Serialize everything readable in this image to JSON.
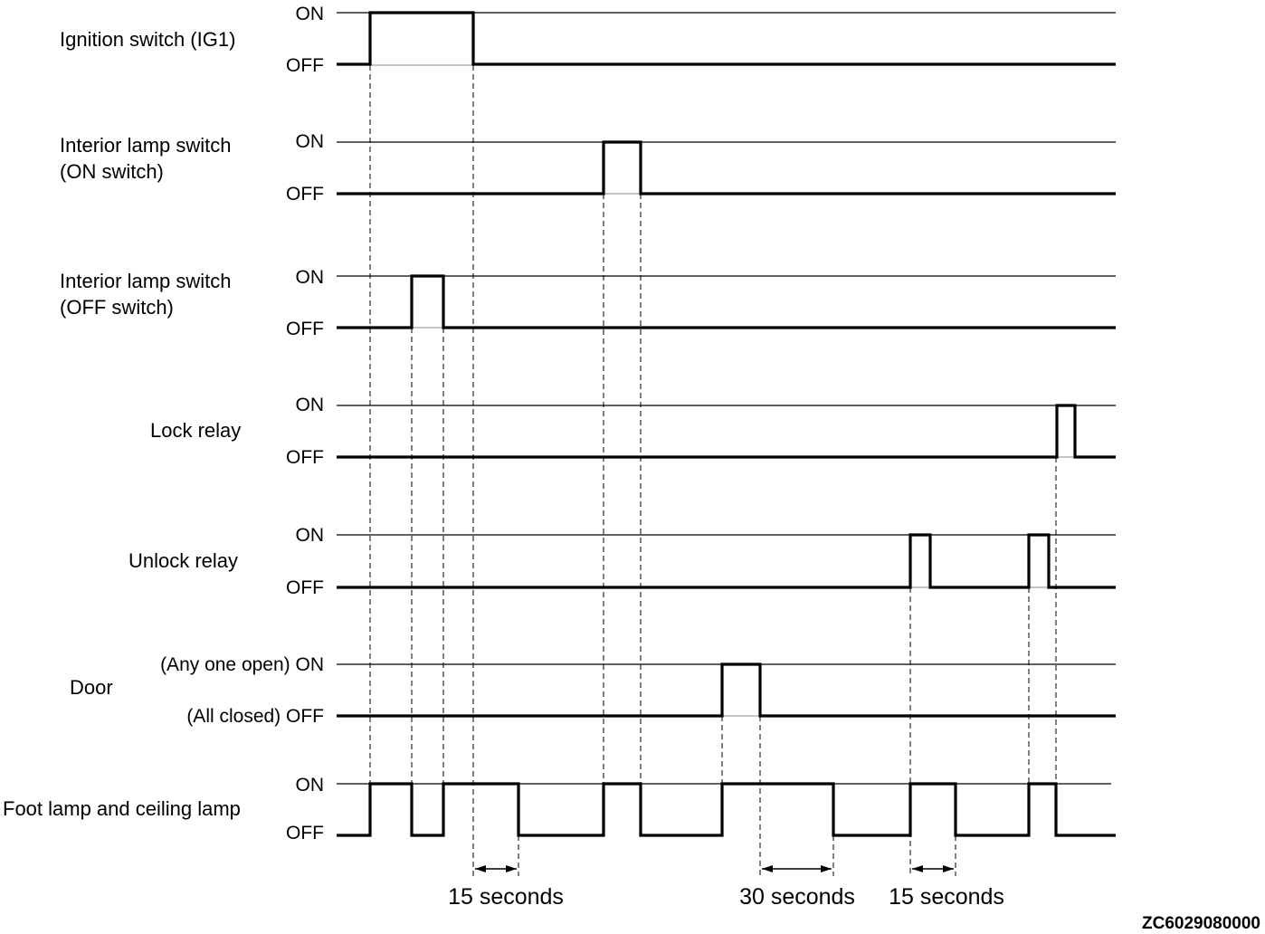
{
  "signals": [
    {
      "label_lines": [
        "Ignition switch (IG1)"
      ],
      "on_label": "ON",
      "off_label": "OFF"
    },
    {
      "label_lines": [
        "Interior lamp switch",
        "(ON switch)"
      ],
      "on_label": "ON",
      "off_label": "OFF"
    },
    {
      "label_lines": [
        "Interior lamp switch",
        "(OFF switch)"
      ],
      "on_label": "ON",
      "off_label": "OFF"
    },
    {
      "label_lines": [
        "Lock relay"
      ],
      "on_label": "ON",
      "off_label": "OFF"
    },
    {
      "label_lines": [
        "Unlock relay"
      ],
      "on_label": "ON",
      "off_label": "OFF"
    },
    {
      "label_lines": [
        "Door"
      ],
      "on_label": "(Any one open) ON",
      "off_label": "(All closed) OFF"
    },
    {
      "label_lines": [
        "Foot lamp and ceiling lamp"
      ],
      "on_label": "ON",
      "off_label": "OFF"
    }
  ],
  "durations": [
    "15 seconds",
    "30 seconds",
    "15 seconds"
  ],
  "figure_code": "ZC6029080000"
}
